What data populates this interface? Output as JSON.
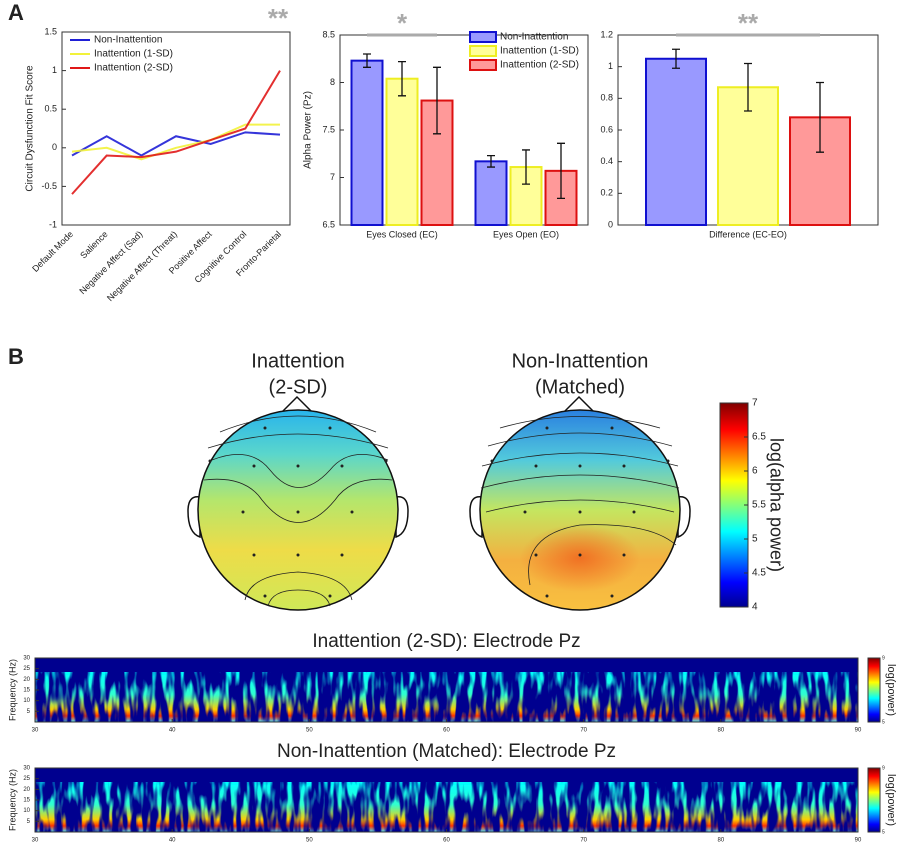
{
  "panel_labels": [
    "A",
    "B"
  ],
  "chart_data": [
    {
      "type": "line",
      "y_label": "Circuit Dysfunction Fit Score",
      "categories": [
        "Default Mode",
        "Salience",
        "Negative Affect (Sad)",
        "Negative Affect (Threat)",
        "Positive Affect",
        "Cognitive Control",
        "Fronto-Parietal"
      ],
      "series": [
        {
          "name": "Non-Inattention",
          "color": "#1f1fd6",
          "values": [
            -0.1,
            0.15,
            -0.1,
            0.15,
            0.05,
            0.2,
            0.17
          ]
        },
        {
          "name": "Inattention (1-SD)",
          "color": "#f2f23a",
          "values": [
            -0.05,
            0.0,
            -0.15,
            0.0,
            0.1,
            0.3,
            0.3
          ]
        },
        {
          "name": "Inattention (2-SD)",
          "color": "#e01818",
          "values": [
            -0.6,
            -0.1,
            -0.12,
            -0.05,
            0.1,
            0.25,
            1.0
          ]
        }
      ],
      "ylim": [
        -1,
        1.5
      ],
      "yticks": [
        -1,
        -0.5,
        0,
        0.5,
        1,
        1.5
      ],
      "legend": "upper left",
      "annotation": "**"
    },
    {
      "type": "bar",
      "y_label": "Alpha Power (Pz)",
      "categories": [
        "Eyes Closed (EC)",
        "Eyes Open (EO)"
      ],
      "series": [
        {
          "name": "Non-Inattention",
          "color": "#9999ff",
          "edge": "#1010d0",
          "values": [
            8.23,
            7.17
          ],
          "errors": [
            0.07,
            0.06
          ]
        },
        {
          "name": "Inattention (1-SD)",
          "color": "#ffff99",
          "edge": "#eeee22",
          "values": [
            8.04,
            7.11
          ],
          "errors": [
            0.18,
            0.18
          ]
        },
        {
          "name": "Inattention (2-SD)",
          "color": "#ff9999",
          "edge": "#dd1010",
          "values": [
            7.81,
            7.07
          ],
          "errors": [
            0.35,
            0.29
          ]
        }
      ],
      "ylim": [
        6.5,
        8.5
      ],
      "yticks": [
        6.5,
        7,
        7.5,
        8,
        8.5
      ],
      "legend": "upper right",
      "annotation": "*"
    },
    {
      "type": "bar",
      "categories": [
        "Difference (EC-EO)"
      ],
      "series": [
        {
          "name": "Non-Inattention",
          "color": "#9999ff",
          "edge": "#1010d0",
          "values": [
            1.05
          ],
          "errors": [
            0.06
          ]
        },
        {
          "name": "Inattention (1-SD)",
          "color": "#ffff99",
          "edge": "#eeee22",
          "values": [
            0.87
          ],
          "errors": [
            0.15
          ]
        },
        {
          "name": "Inattention (2-SD)",
          "color": "#ff9999",
          "edge": "#dd1010",
          "values": [
            0.68
          ],
          "errors": [
            0.22
          ]
        }
      ],
      "ylim": [
        0,
        1.2
      ],
      "yticks": [
        0,
        0.2,
        0.4,
        0.6,
        0.8,
        1,
        1.2
      ],
      "annotation": "**"
    },
    {
      "type": "topomap",
      "maps": [
        {
          "title": [
            "Inattention",
            "(2-SD)"
          ]
        },
        {
          "title": [
            "Non-Inattention",
            "(Matched)"
          ]
        }
      ],
      "colorbar": {
        "label": "log(alpha power)",
        "ylim": [
          4,
          7
        ],
        "yticks": [
          4,
          4.5,
          5,
          5.5,
          6,
          6.5,
          7
        ]
      }
    },
    {
      "type": "spectrogram",
      "title": "Inattention (2-SD): Electrode Pz",
      "y_label": "Frequency (Hz)",
      "xlim": [
        30,
        90
      ],
      "xticks": [
        30,
        40,
        50,
        60,
        70,
        80,
        90
      ],
      "ylim": [
        0,
        30
      ],
      "yticks": [
        5,
        10,
        15,
        20,
        25,
        30
      ],
      "colorbar": {
        "label": "log(power)",
        "ylim": [
          5,
          9
        ],
        "yticks": [
          5,
          9
        ]
      }
    },
    {
      "type": "spectrogram",
      "title": "Non-Inattention (Matched): Electrode Pz",
      "y_label": "Frequency (Hz)",
      "xlim": [
        30,
        90
      ],
      "xticks": [
        30,
        40,
        50,
        60,
        70,
        80,
        90
      ],
      "ylim": [
        0,
        30
      ],
      "yticks": [
        5,
        10,
        15,
        20,
        25,
        30
      ],
      "colorbar": {
        "label": "log(power)",
        "ylim": [
          5,
          9
        ],
        "yticks": [
          5,
          9
        ]
      }
    }
  ]
}
